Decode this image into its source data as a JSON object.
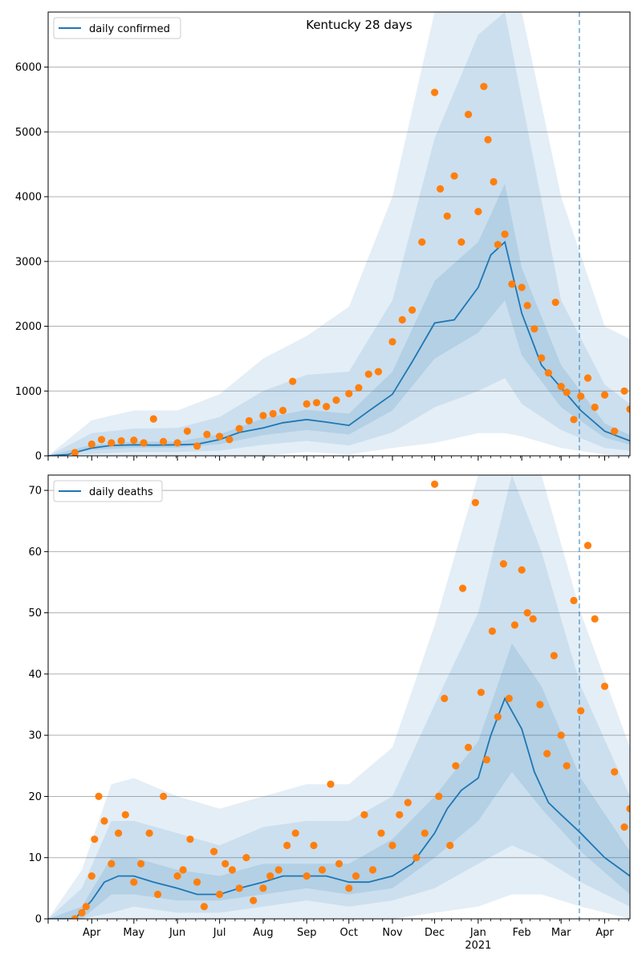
{
  "chart_data": [
    {
      "type": "line",
      "panel": "top",
      "title": "Kentucky 28 days",
      "x_type": "date",
      "xlim": [
        "2020-03-01",
        "2021-04-19"
      ],
      "ylim": [
        0,
        6850
      ],
      "yticks": [
        0,
        1000,
        2000,
        3000,
        4000,
        5000,
        6000
      ],
      "grid": "horizontal",
      "legend_position": "top-left",
      "forecast_date": "2021-03-14",
      "colors": {
        "line": "#1f77b4",
        "band": "#1f77b4",
        "points": "#ff7f0e",
        "grid": "#b0b0b0"
      },
      "series": [
        {
          "name": "daily confirmed",
          "kind": "line",
          "x": [
            "2020-03-01",
            "2020-03-15",
            "2020-04-01",
            "2020-04-15",
            "2020-05-01",
            "2020-05-15",
            "2020-06-01",
            "2020-06-15",
            "2020-07-01",
            "2020-07-15",
            "2020-08-01",
            "2020-08-15",
            "2020-09-01",
            "2020-09-15",
            "2020-10-01",
            "2020-10-15",
            "2020-11-01",
            "2020-11-15",
            "2020-12-01",
            "2020-12-15",
            "2021-01-01",
            "2021-01-10",
            "2021-01-20",
            "2021-02-01",
            "2021-02-15",
            "2021-03-01",
            "2021-03-15",
            "2021-04-01",
            "2021-04-19"
          ],
          "y": [
            0,
            20,
            120,
            160,
            170,
            165,
            170,
            180,
            250,
            360,
            430,
            510,
            560,
            520,
            470,
            690,
            950,
            1450,
            2050,
            2100,
            2600,
            3100,
            3300,
            2200,
            1400,
            1050,
            700,
            380,
            230
          ]
        },
        {
          "name": "50% band",
          "kind": "band",
          "x": [
            "2020-03-01",
            "2020-04-01",
            "2020-05-01",
            "2020-06-01",
            "2020-07-01",
            "2020-08-01",
            "2020-09-01",
            "2020-10-01",
            "2020-11-01",
            "2020-12-01",
            "2021-01-01",
            "2021-01-20",
            "2021-02-01",
            "2021-03-01",
            "2021-04-01",
            "2021-04-19"
          ],
          "low": [
            0,
            90,
            125,
            125,
            180,
            320,
            400,
            330,
            700,
            1500,
            1900,
            2400,
            1550,
            750,
            280,
            170
          ],
          "high": [
            0,
            170,
            220,
            220,
            330,
            580,
            710,
            650,
            1300,
            2700,
            3300,
            4200,
            2900,
            1400,
            500,
            320
          ]
        },
        {
          "name": "90% band",
          "kind": "band",
          "x": [
            "2020-03-01",
            "2020-04-01",
            "2020-05-01",
            "2020-06-01",
            "2020-07-01",
            "2020-08-01",
            "2020-09-01",
            "2020-10-01",
            "2020-11-01",
            "2020-12-01",
            "2021-01-01",
            "2021-01-20",
            "2021-02-01",
            "2021-03-01",
            "2021-04-01",
            "2021-04-19"
          ],
          "low": [
            0,
            30,
            60,
            60,
            80,
            170,
            230,
            160,
            360,
            750,
            1000,
            1200,
            800,
            400,
            120,
            80
          ],
          "high": [
            0,
            350,
            420,
            430,
            600,
            1000,
            1250,
            1300,
            2400,
            4900,
            6500,
            7000,
            5500,
            2400,
            1100,
            800
          ]
        },
        {
          "name": "95% band",
          "kind": "band",
          "x": [
            "2020-03-01",
            "2020-04-01",
            "2020-05-01",
            "2020-06-01",
            "2020-07-01",
            "2020-08-01",
            "2020-09-01",
            "2020-10-01",
            "2020-11-01",
            "2020-12-01",
            "2021-01-01",
            "2021-01-20",
            "2021-02-01",
            "2021-03-01",
            "2021-04-01",
            "2021-04-19"
          ],
          "low": [
            0,
            0,
            0,
            0,
            0,
            0,
            60,
            20,
            120,
            200,
            350,
            350,
            300,
            120,
            20,
            0
          ],
          "high": [
            0,
            550,
            700,
            700,
            950,
            1500,
            1850,
            2300,
            4000,
            7000,
            7000,
            7000,
            7000,
            4000,
            2000,
            1800
          ]
        },
        {
          "name": "observed",
          "kind": "scatter",
          "x": [
            "2020-03-20",
            "2020-04-01",
            "2020-04-08",
            "2020-04-15",
            "2020-04-22",
            "2020-05-01",
            "2020-05-08",
            "2020-05-15",
            "2020-05-22",
            "2020-06-01",
            "2020-06-08",
            "2020-06-15",
            "2020-06-22",
            "2020-07-01",
            "2020-07-08",
            "2020-07-15",
            "2020-07-22",
            "2020-08-01",
            "2020-08-08",
            "2020-08-15",
            "2020-08-22",
            "2020-09-01",
            "2020-09-08",
            "2020-09-15",
            "2020-09-22",
            "2020-10-01",
            "2020-10-08",
            "2020-10-15",
            "2020-10-22",
            "2020-11-01",
            "2020-11-08",
            "2020-11-15",
            "2020-11-22",
            "2020-12-01",
            "2020-12-05",
            "2020-12-10",
            "2020-12-15",
            "2020-12-20",
            "2020-12-25",
            "2021-01-01",
            "2021-01-05",
            "2021-01-08",
            "2021-01-12",
            "2021-01-15",
            "2021-01-20",
            "2021-01-25",
            "2021-02-01",
            "2021-02-05",
            "2021-02-10",
            "2021-02-15",
            "2021-02-20",
            "2021-02-25",
            "2021-03-01",
            "2021-03-05",
            "2021-03-10",
            "2021-03-15",
            "2021-03-20",
            "2021-03-25",
            "2021-04-01",
            "2021-04-08",
            "2021-04-15",
            "2021-04-19"
          ],
          "y": [
            50,
            180,
            250,
            200,
            230,
            240,
            200,
            570,
            220,
            200,
            380,
            150,
            330,
            300,
            250,
            420,
            540,
            620,
            650,
            700,
            1150,
            800,
            820,
            760,
            860,
            960,
            1050,
            1260,
            1300,
            1760,
            2100,
            2250,
            3300,
            5610,
            4120,
            3700,
            4320,
            3300,
            5270,
            3770,
            5700,
            4880,
            4230,
            3260,
            3420,
            2650,
            2600,
            2320,
            1960,
            1510,
            1280,
            2370,
            1070,
            980,
            560,
            920,
            1200,
            750,
            940,
            380,
            1000,
            720
          ]
        }
      ]
    },
    {
      "type": "line",
      "panel": "bottom",
      "x_type": "date",
      "xlim": [
        "2020-03-01",
        "2021-04-19"
      ],
      "ylim": [
        0,
        72.5
      ],
      "yticks": [
        0,
        10,
        20,
        30,
        40,
        50,
        60,
        70
      ],
      "grid": "horizontal",
      "legend_position": "top-left",
      "forecast_date": "2021-03-14",
      "xtick_labels": [
        "Apr",
        "May",
        "Jun",
        "Jul",
        "Aug",
        "Sep",
        "Oct",
        "Nov",
        "Dec",
        "Jan",
        "Feb",
        "Mar",
        "Apr"
      ],
      "xtick_dates": [
        "2020-04-01",
        "2020-05-01",
        "2020-06-01",
        "2020-07-01",
        "2020-08-01",
        "2020-09-01",
        "2020-10-01",
        "2020-11-01",
        "2020-12-01",
        "2021-01-01",
        "2021-02-01",
        "2021-03-01",
        "2021-04-01"
      ],
      "year_label": "2021",
      "year_label_date": "2021-01-01",
      "colors": {
        "line": "#1f77b4",
        "band": "#1f77b4",
        "points": "#ff7f0e",
        "grid": "#b0b0b0"
      },
      "series": [
        {
          "name": "daily deaths",
          "kind": "line",
          "x": [
            "2020-03-01",
            "2020-03-20",
            "2020-04-01",
            "2020-04-10",
            "2020-04-20",
            "2020-05-01",
            "2020-05-15",
            "2020-06-01",
            "2020-06-15",
            "2020-07-01",
            "2020-07-15",
            "2020-08-01",
            "2020-08-15",
            "2020-09-01",
            "2020-09-15",
            "2020-10-01",
            "2020-10-15",
            "2020-11-01",
            "2020-11-15",
            "2020-12-01",
            "2020-12-10",
            "2020-12-20",
            "2021-01-01",
            "2021-01-10",
            "2021-01-20",
            "2021-02-01",
            "2021-02-10",
            "2021-02-20",
            "2021-03-01",
            "2021-03-15",
            "2021-04-01",
            "2021-04-19"
          ],
          "y": [
            0,
            0,
            3,
            6,
            7,
            7,
            6,
            5,
            4,
            4,
            5,
            6,
            7,
            7,
            7,
            6,
            6,
            7,
            9,
            14,
            18,
            21,
            23,
            30,
            36,
            31,
            24,
            19,
            17,
            14,
            10,
            7
          ]
        },
        {
          "name": "50% band",
          "kind": "band",
          "x": [
            "2020-03-01",
            "2020-03-25",
            "2020-04-15",
            "2020-05-01",
            "2020-06-01",
            "2020-07-01",
            "2020-08-01",
            "2020-09-01",
            "2020-10-01",
            "2020-11-01",
            "2020-12-01",
            "2021-01-01",
            "2021-01-25",
            "2021-02-15",
            "2021-03-15",
            "2021-04-19"
          ],
          "low": [
            0,
            0,
            4,
            4,
            3,
            3,
            4,
            5,
            4,
            5,
            10,
            16,
            24,
            18,
            11,
            4
          ],
          "high": [
            0,
            2,
            10,
            10,
            8,
            7,
            9,
            9,
            9,
            13,
            20,
            29,
            45,
            38,
            23,
            11
          ]
        },
        {
          "name": "90% band",
          "kind": "band",
          "x": [
            "2020-03-01",
            "2020-03-25",
            "2020-04-15",
            "2020-05-01",
            "2020-06-01",
            "2020-07-01",
            "2020-08-01",
            "2020-09-01",
            "2020-10-01",
            "2020-11-01",
            "2020-12-01",
            "2021-01-01",
            "2021-01-25",
            "2021-02-15",
            "2021-03-15",
            "2021-04-19"
          ],
          "low": [
            0,
            0,
            1,
            2,
            1,
            1,
            2,
            3,
            2,
            3,
            5,
            9,
            12,
            10,
            6,
            2
          ],
          "high": [
            0,
            5,
            16,
            16,
            14,
            12,
            15,
            16,
            16,
            20,
            35,
            50,
            73,
            60,
            38,
            20
          ]
        },
        {
          "name": "95% band",
          "kind": "band",
          "x": [
            "2020-03-01",
            "2020-03-25",
            "2020-04-15",
            "2020-05-01",
            "2020-06-01",
            "2020-07-01",
            "2020-08-01",
            "2020-09-01",
            "2020-10-01",
            "2020-11-01",
            "2020-12-01",
            "2021-01-01",
            "2021-01-25",
            "2021-02-15",
            "2021-03-15",
            "2021-04-19"
          ],
          "low": [
            0,
            0,
            0,
            0,
            0,
            0,
            0,
            0,
            0,
            0,
            1,
            2,
            4,
            4,
            2,
            0
          ],
          "high": [
            0,
            8,
            22,
            23,
            20,
            18,
            20,
            22,
            22,
            28,
            48,
            73,
            73,
            73,
            50,
            28
          ]
        },
        {
          "name": "observed",
          "kind": "scatter",
          "x": [
            "2020-03-20",
            "2020-03-25",
            "2020-03-28",
            "2020-04-01",
            "2020-04-03",
            "2020-04-06",
            "2020-04-10",
            "2020-04-15",
            "2020-04-20",
            "2020-04-25",
            "2020-05-01",
            "2020-05-06",
            "2020-05-12",
            "2020-05-18",
            "2020-05-22",
            "2020-06-01",
            "2020-06-05",
            "2020-06-10",
            "2020-06-15",
            "2020-06-20",
            "2020-06-27",
            "2020-07-01",
            "2020-07-05",
            "2020-07-10",
            "2020-07-15",
            "2020-07-20",
            "2020-07-25",
            "2020-08-01",
            "2020-08-06",
            "2020-08-12",
            "2020-08-18",
            "2020-08-24",
            "2020-09-01",
            "2020-09-06",
            "2020-09-12",
            "2020-09-18",
            "2020-09-24",
            "2020-10-01",
            "2020-10-06",
            "2020-10-12",
            "2020-10-18",
            "2020-10-24",
            "2020-11-01",
            "2020-11-06",
            "2020-11-12",
            "2020-11-18",
            "2020-11-24",
            "2020-12-01",
            "2020-12-04",
            "2020-12-08",
            "2020-12-12",
            "2020-12-16",
            "2020-12-21",
            "2020-12-25",
            "2020-12-30",
            "2021-01-03",
            "2021-01-07",
            "2021-01-11",
            "2021-01-15",
            "2021-01-19",
            "2021-01-23",
            "2021-01-27",
            "2021-02-01",
            "2021-02-05",
            "2021-02-09",
            "2021-02-14",
            "2021-02-19",
            "2021-02-24",
            "2021-03-01",
            "2021-03-05",
            "2021-03-10",
            "2021-03-15",
            "2021-03-20",
            "2021-03-25",
            "2021-04-01",
            "2021-04-08",
            "2021-04-15",
            "2021-04-19"
          ],
          "y": [
            0,
            1,
            2,
            7,
            13,
            20,
            16,
            9,
            14,
            17,
            6,
            9,
            14,
            4,
            20,
            7,
            8,
            13,
            6,
            2,
            11,
            4,
            9,
            8,
            5,
            10,
            3,
            5,
            7,
            8,
            12,
            14,
            7,
            12,
            8,
            22,
            9,
            5,
            7,
            17,
            8,
            14,
            12,
            17,
            19,
            10,
            14,
            71,
            20,
            36,
            12,
            25,
            54,
            28,
            68,
            37,
            26,
            47,
            33,
            58,
            36,
            48,
            57,
            50,
            49,
            35,
            27,
            43,
            30,
            25,
            52,
            34,
            61,
            49,
            38,
            24,
            15,
            18
          ]
        }
      ]
    }
  ]
}
